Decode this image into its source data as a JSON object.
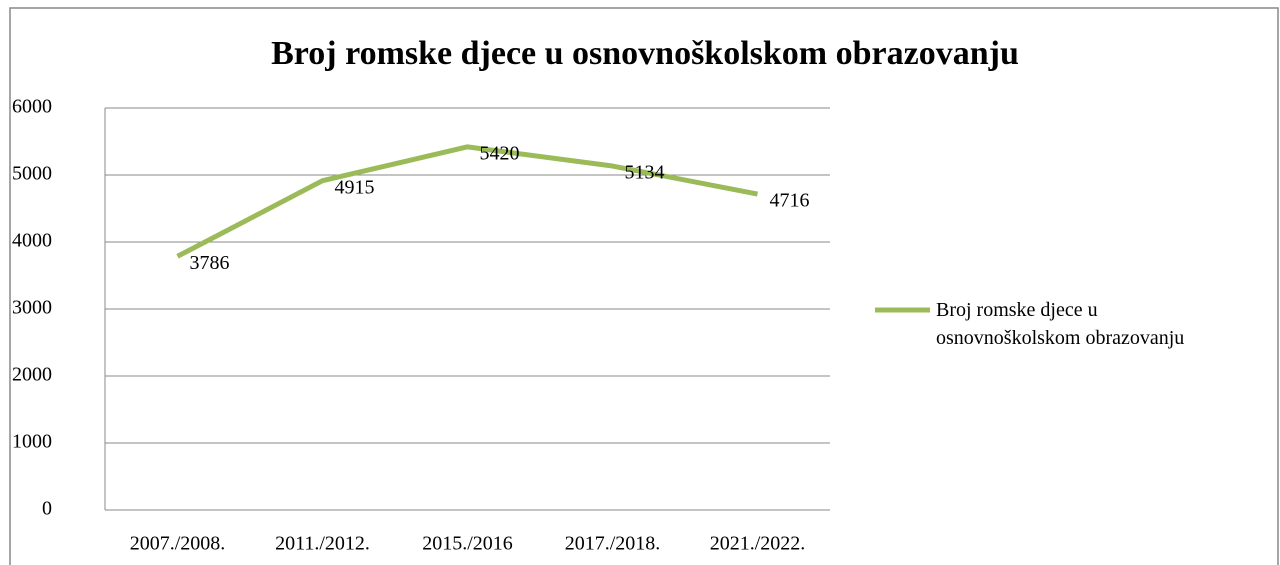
{
  "chart_data": {
    "type": "line",
    "title": "Broj romske djece u osnovnoškolskom obrazovanju",
    "categories": [
      "2007./2008.",
      "2011./2012.",
      "2015./2016",
      "2017./2018.",
      "2021./2022."
    ],
    "series": [
      {
        "name": "Broj romske djece u osnovnoškolskom obrazovanju",
        "color": "#9bbb59",
        "values": [
          3786,
          4915,
          5420,
          5134,
          4716
        ]
      }
    ],
    "ylim": [
      0,
      6000
    ],
    "yticks": [
      0,
      1000,
      2000,
      3000,
      4000,
      5000,
      6000
    ],
    "grid": true,
    "legend": "right",
    "data_labels": true
  }
}
